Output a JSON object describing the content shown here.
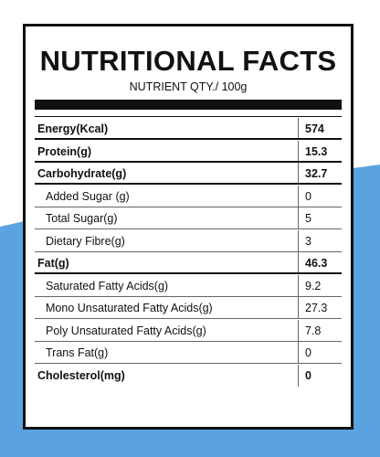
{
  "colors": {
    "background_accent": "#5aa3e0",
    "border": "#111111"
  },
  "label": {
    "title": "NUTRITIONAL FACTS",
    "subtitle": "NUTRIENT QTY./ 100g",
    "rows": [
      {
        "name": "Energy(Kcal)",
        "value": "574",
        "bold": true
      },
      {
        "name": "Protein(g)",
        "value": "15.3",
        "bold": true
      },
      {
        "name": "Carbohydrate(g)",
        "value": "32.7",
        "bold": true
      },
      {
        "name": "Added Sugar (g)",
        "value": "0",
        "bold": false
      },
      {
        "name": "Total Sugar(g)",
        "value": "5",
        "bold": false
      },
      {
        "name": "Dietary Fibre(g)",
        "value": "3",
        "bold": false
      },
      {
        "name": "Fat(g)",
        "value": "46.3",
        "bold": true
      },
      {
        "name": "Saturated Fatty Acids(g)",
        "value": "9.2",
        "bold": false
      },
      {
        "name": "Mono Unsaturated Fatty Acids(g)",
        "value": "27.3",
        "bold": false
      },
      {
        "name": "Poly Unsaturated Fatty Acids(g)",
        "value": "7.8",
        "bold": false
      },
      {
        "name": "Trans Fat(g)",
        "value": "0",
        "bold": false
      },
      {
        "name": "Cholesterol(mg)",
        "value": "0",
        "bold": true
      }
    ]
  }
}
